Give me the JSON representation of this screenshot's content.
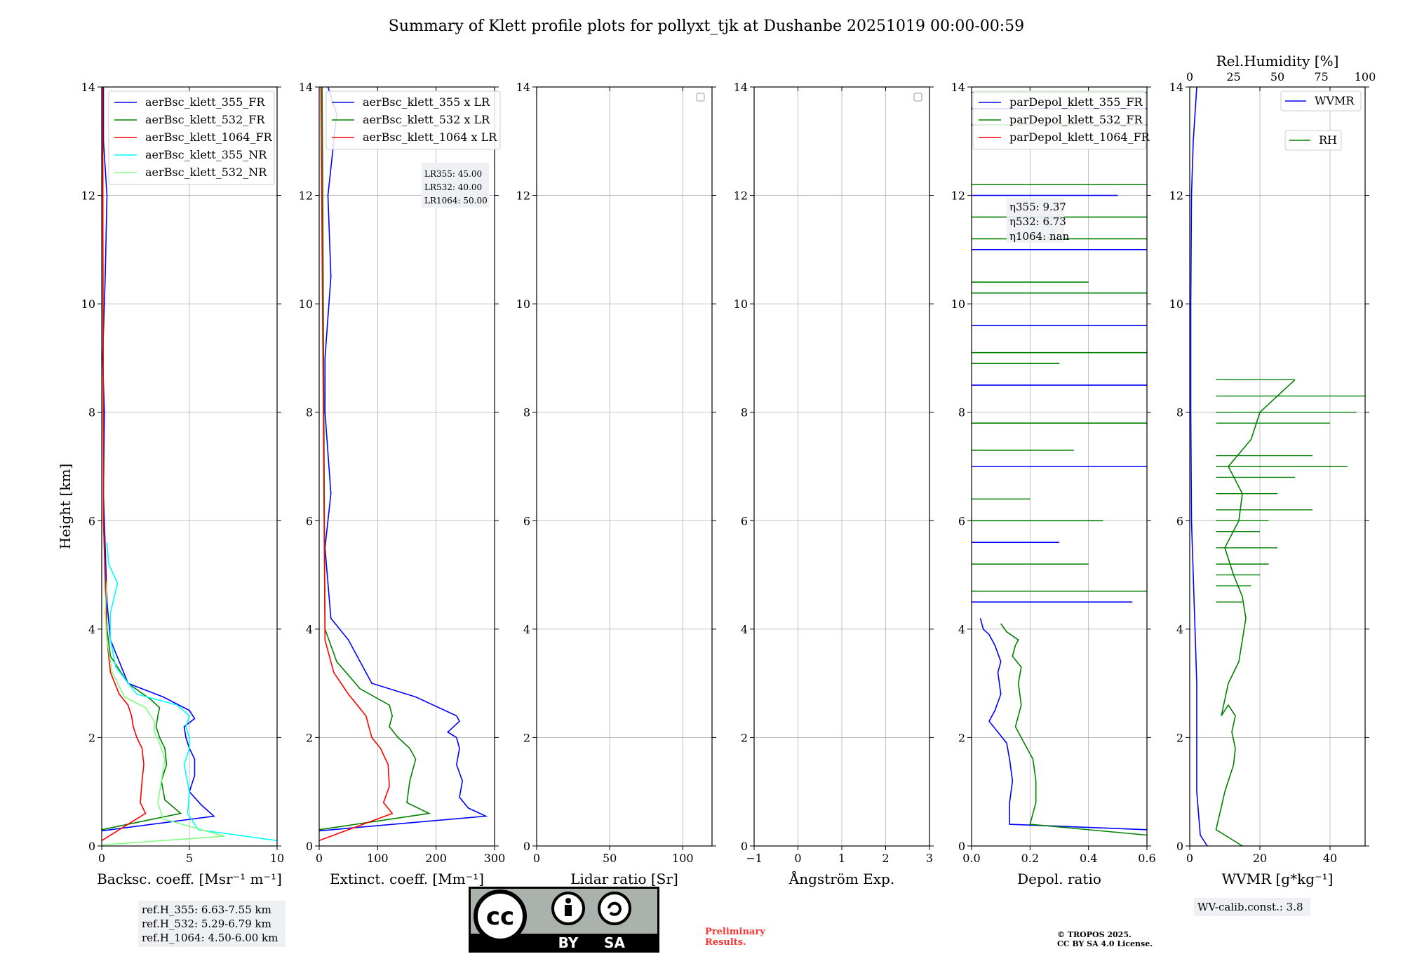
{
  "title": "Summary of Klett profile plots for pollyxt_tjk at Dushanbe 20251019 00:00-00:59",
  "ylabel": "Height [km]",
  "yticks": [
    "0",
    "2",
    "4",
    "6",
    "8",
    "10",
    "12",
    "14"
  ],
  "colors": {
    "b355": "#0000ff",
    "b532": "#008000",
    "b1064": "#ff0000",
    "c355": "#00ffff",
    "g532": "#80ff80"
  },
  "panels": [
    {
      "id": "bsc",
      "xlabel": "Backsc. coeff. [Msr⁻¹ m⁻¹]",
      "xlim": [
        0,
        10
      ],
      "xticks": [
        "0",
        "5",
        "10"
      ],
      "legend": [
        "aerBsc_klett_355_FR",
        "aerBsc_klett_532_FR",
        "aerBsc_klett_1064_FR",
        "aerBsc_klett_355_NR",
        "aerBsc_klett_532_NR"
      ]
    },
    {
      "id": "ext",
      "xlabel": "Extinct. coeff. [Mm⁻¹]",
      "xlim": [
        0,
        300
      ],
      "xticks": [
        "0",
        "100",
        "200",
        "300"
      ],
      "legend": [
        "aerBsc_klett_355 x LR",
        "aerBsc_klett_532 x LR",
        "aerBsc_klett_1064 x LR"
      ],
      "lr": [
        "LR355: 45.00",
        "LR532: 40.00",
        "LR1064: 50.00"
      ]
    },
    {
      "id": "lr",
      "xlabel": "Lidar ratio [Sr]",
      "xlim": [
        0,
        120
      ],
      "xticks": [
        "0",
        "50",
        "100"
      ]
    },
    {
      "id": "ang",
      "xlabel": "Ångström Exp.",
      "xlim": [
        -1,
        3
      ],
      "xticks": [
        "−1",
        "0",
        "1",
        "2",
        "3"
      ]
    },
    {
      "id": "dep",
      "xlabel": "Depol. ratio",
      "xlim": [
        0,
        0.6
      ],
      "xticks": [
        "0.0",
        "0.2",
        "0.4",
        "0.6"
      ],
      "legend": [
        "parDepol_klett_355_FR",
        "parDepol_klett_532_FR",
        "parDepol_klett_1064_FR"
      ],
      "eta": [
        "η355: 9.37",
        "η532: 6.73",
        "η1064: nan"
      ]
    },
    {
      "id": "wv",
      "xlabel": "WVMR [g*kg⁻¹]",
      "xlim": [
        0,
        50
      ],
      "xticks": [
        "0",
        "20",
        "40"
      ],
      "toplabel": "Rel.Humidity [%]",
      "topticks": [
        "0",
        "25",
        "50",
        "75",
        "100"
      ],
      "legend": [
        "WVMR",
        "RH"
      ]
    }
  ],
  "chart_data": [
    {
      "type": "line",
      "title": "Backsc. coeff.",
      "xlabel": "Backsc. coeff. [Msr-1 m-1]",
      "ylabel": "Height [km]",
      "xlim": [
        0,
        10
      ],
      "ylim": [
        0,
        14
      ],
      "series": [
        {
          "name": "aerBsc_klett_355_FR",
          "x": [
            0,
            6.4,
            5.7,
            5.0,
            5.3,
            5.3,
            5.0,
            4.8,
            4.7,
            5.3,
            5.0,
            3.5,
            1.5,
            0.5,
            0.3,
            0.2,
            0.1,
            0.15,
            0.05,
            0.2,
            0.3,
            0.1,
            0.1
          ],
          "y": [
            0.28,
            0.55,
            0.75,
            1.0,
            1.3,
            1.6,
            1.8,
            2.0,
            2.2,
            2.35,
            2.5,
            2.75,
            3.0,
            3.8,
            4.5,
            5.5,
            6.5,
            8.0,
            9.0,
            10.5,
            12.0,
            13.0,
            14.0
          ]
        },
        {
          "name": "aerBsc_klett_532_FR",
          "x": [
            0,
            4.5,
            3.6,
            3.4,
            3.7,
            3.6,
            3.3,
            3.1,
            3.2,
            3.3,
            2.8,
            1.5,
            0.5,
            0.3,
            0.1,
            0.05
          ],
          "y": [
            0.3,
            0.6,
            0.85,
            1.2,
            1.5,
            1.8,
            2.0,
            2.2,
            2.4,
            2.55,
            2.7,
            3.0,
            3.5,
            4.0,
            6.0,
            14.0
          ]
        },
        {
          "name": "aerBsc_klett_1064_FR",
          "x": [
            0,
            2.5,
            2.2,
            2.3,
            2.4,
            2.3,
            2.0,
            1.8,
            1.7,
            1.5,
            1.0,
            0.5,
            0.3,
            0.1,
            0.05
          ],
          "y": [
            0.1,
            0.6,
            0.8,
            1.2,
            1.5,
            1.8,
            2.0,
            2.2,
            2.4,
            2.6,
            2.8,
            3.2,
            3.8,
            6.0,
            14.0
          ]
        },
        {
          "name": "aerBsc_klett_355_NR",
          "x": [
            10,
            5.5,
            4.9,
            5.0,
            4.7,
            5.0,
            5.0,
            4.8,
            5.0,
            4.3,
            2.0,
            0.8,
            0.5,
            0.5,
            0.9,
            0.4,
            0.3
          ],
          "y": [
            0.1,
            0.3,
            0.6,
            1.0,
            1.5,
            1.8,
            2.0,
            2.2,
            2.4,
            2.6,
            2.8,
            3.3,
            3.8,
            4.3,
            4.85,
            5.2,
            5.6
          ]
        },
        {
          "name": "aerBsc_klett_532_NR",
          "x": [
            0,
            7.0,
            3.5,
            3.2,
            3.4,
            3.6,
            3.3,
            3.0,
            3.0,
            2.5,
            1.3,
            0.6,
            0.3,
            0.2,
            0.3
          ],
          "y": [
            0.02,
            0.18,
            0.5,
            0.8,
            1.2,
            1.6,
            1.9,
            2.1,
            2.3,
            2.55,
            2.75,
            3.2,
            3.8,
            4.3,
            4.9
          ]
        }
      ]
    },
    {
      "type": "line",
      "title": "Extinct. coeff.",
      "xlabel": "Extinct. coeff. [Mm-1]",
      "ylabel": "Height [km]",
      "xlim": [
        0,
        300
      ],
      "ylim": [
        0,
        14
      ],
      "series": [
        {
          "name": "aerBsc_klett_355 x LR",
          "x": [
            0,
            285,
            255,
            240,
            245,
            235,
            240,
            235,
            220,
            240,
            235,
            165,
            90,
            50,
            20,
            10,
            20,
            10,
            10,
            20,
            15,
            30,
            15
          ],
          "y": [
            0.28,
            0.55,
            0.7,
            0.9,
            1.2,
            1.5,
            1.8,
            2.0,
            2.1,
            2.3,
            2.4,
            2.75,
            3.0,
            3.8,
            4.2,
            5.5,
            6.5,
            8.0,
            9.0,
            10.5,
            12.0,
            13.5,
            14.0
          ]
        },
        {
          "name": "aerBsc_klett_532 x LR",
          "x": [
            0,
            188,
            150,
            155,
            165,
            155,
            135,
            120,
            125,
            120,
            70,
            30,
            10,
            5
          ],
          "y": [
            0.3,
            0.6,
            0.8,
            1.2,
            1.6,
            1.8,
            2.0,
            2.2,
            2.4,
            2.6,
            2.9,
            3.4,
            4.0,
            14.0
          ]
        },
        {
          "name": "aerBsc_klett_1064 x LR",
          "x": [
            0,
            125,
            110,
            120,
            118,
            105,
            90,
            85,
            80,
            50,
            25,
            10,
            3
          ],
          "y": [
            0.1,
            0.6,
            0.8,
            1.1,
            1.5,
            1.8,
            2.0,
            2.2,
            2.4,
            2.8,
            3.2,
            3.8,
            14.0
          ]
        }
      ]
    },
    {
      "type": "line",
      "title": "Lidar ratio",
      "xlabel": "Lidar ratio [Sr]",
      "ylabel": "Height [km]",
      "xlim": [
        0,
        120
      ],
      "ylim": [
        0,
        14
      ],
      "series": []
    },
    {
      "type": "line",
      "title": "Angstrom Exp.",
      "xlabel": "Angstrom Exp.",
      "ylabel": "Height [km]",
      "xlim": [
        -1,
        3
      ],
      "ylim": [
        0,
        14
      ],
      "series": []
    },
    {
      "type": "line",
      "title": "Depol. ratio",
      "xlabel": "Depol. ratio",
      "ylabel": "Height [km]",
      "xlim": [
        0,
        0.6
      ],
      "ylim": [
        0,
        14
      ],
      "series": [
        {
          "name": "parDepol_klett_355_FR",
          "x": [
            0.6,
            0.13,
            0.13,
            0.14,
            0.13,
            0.12,
            0.06,
            0.08,
            0.1,
            0.09,
            0.1,
            0.08,
            0.06,
            0.04,
            0.03
          ],
          "y": [
            0.3,
            0.4,
            0.8,
            1.2,
            1.6,
            1.9,
            2.3,
            2.5,
            2.8,
            3.2,
            3.4,
            3.7,
            3.9,
            4.0,
            4.2
          ]
        },
        {
          "name": "parDepol_klett_532_FR",
          "x": [
            0.6,
            0.2,
            0.22,
            0.22,
            0.21,
            0.18,
            0.15,
            0.17,
            0.16,
            0.17,
            0.14,
            0.15,
            0.16,
            0.12,
            0.1
          ],
          "y": [
            0.2,
            0.4,
            0.8,
            1.2,
            1.6,
            1.9,
            2.2,
            2.6,
            3.0,
            3.3,
            3.5,
            3.7,
            3.8,
            3.95,
            4.1
          ]
        },
        {
          "name": "parDepol_klett_1064_FR",
          "x": [],
          "y": []
        }
      ]
    },
    {
      "type": "line",
      "title": "WVMR / RH",
      "xlabel": "WVMR [g*kg-1]",
      "ylabel": "Height [km]",
      "xlim": [
        0,
        50
      ],
      "ylim": [
        0,
        14
      ],
      "x2label": "Rel.Humidity [%]",
      "x2lim": [
        0,
        100
      ],
      "series": [
        {
          "name": "WVMR",
          "x": [
            5,
            3,
            2,
            2,
            2,
            1.5,
            1,
            0.5,
            0.3,
            0.3,
            0.5,
            1,
            2
          ],
          "y": [
            0.0,
            0.2,
            1.0,
            2.0,
            3.0,
            4.0,
            5.0,
            6.0,
            8.0,
            10.0,
            12.0,
            13.0,
            14.0
          ]
        },
        {
          "name": "RH",
          "x": [
            30,
            15,
            20,
            25,
            26,
            24,
            26,
            22,
            18,
            22,
            28,
            30,
            32,
            30,
            25,
            20,
            28,
            30,
            22,
            35,
            40,
            60
          ],
          "y": [
            0.0,
            0.3,
            1.0,
            1.5,
            1.8,
            2.1,
            2.4,
            2.6,
            2.4,
            3.0,
            3.4,
            3.8,
            4.2,
            4.6,
            5.0,
            5.5,
            6.0,
            6.5,
            7.0,
            7.5,
            8.0,
            8.6
          ]
        }
      ]
    }
  ],
  "ref_heights": [
    "ref.H_355: 6.63-7.55 km",
    "ref.H_532: 5.29-6.79 km",
    "ref.H_1064: 4.50-6.00 km"
  ],
  "license": {
    "by": "BY",
    "sa": "SA",
    "cc": "cc"
  },
  "preliminary": [
    "Preliminary",
    "Results."
  ],
  "copyright": [
    "© TROPOS 2025.",
    "CC BY SA 4.0 License."
  ],
  "wv_calib": "WV-calib.const.: 3.8"
}
